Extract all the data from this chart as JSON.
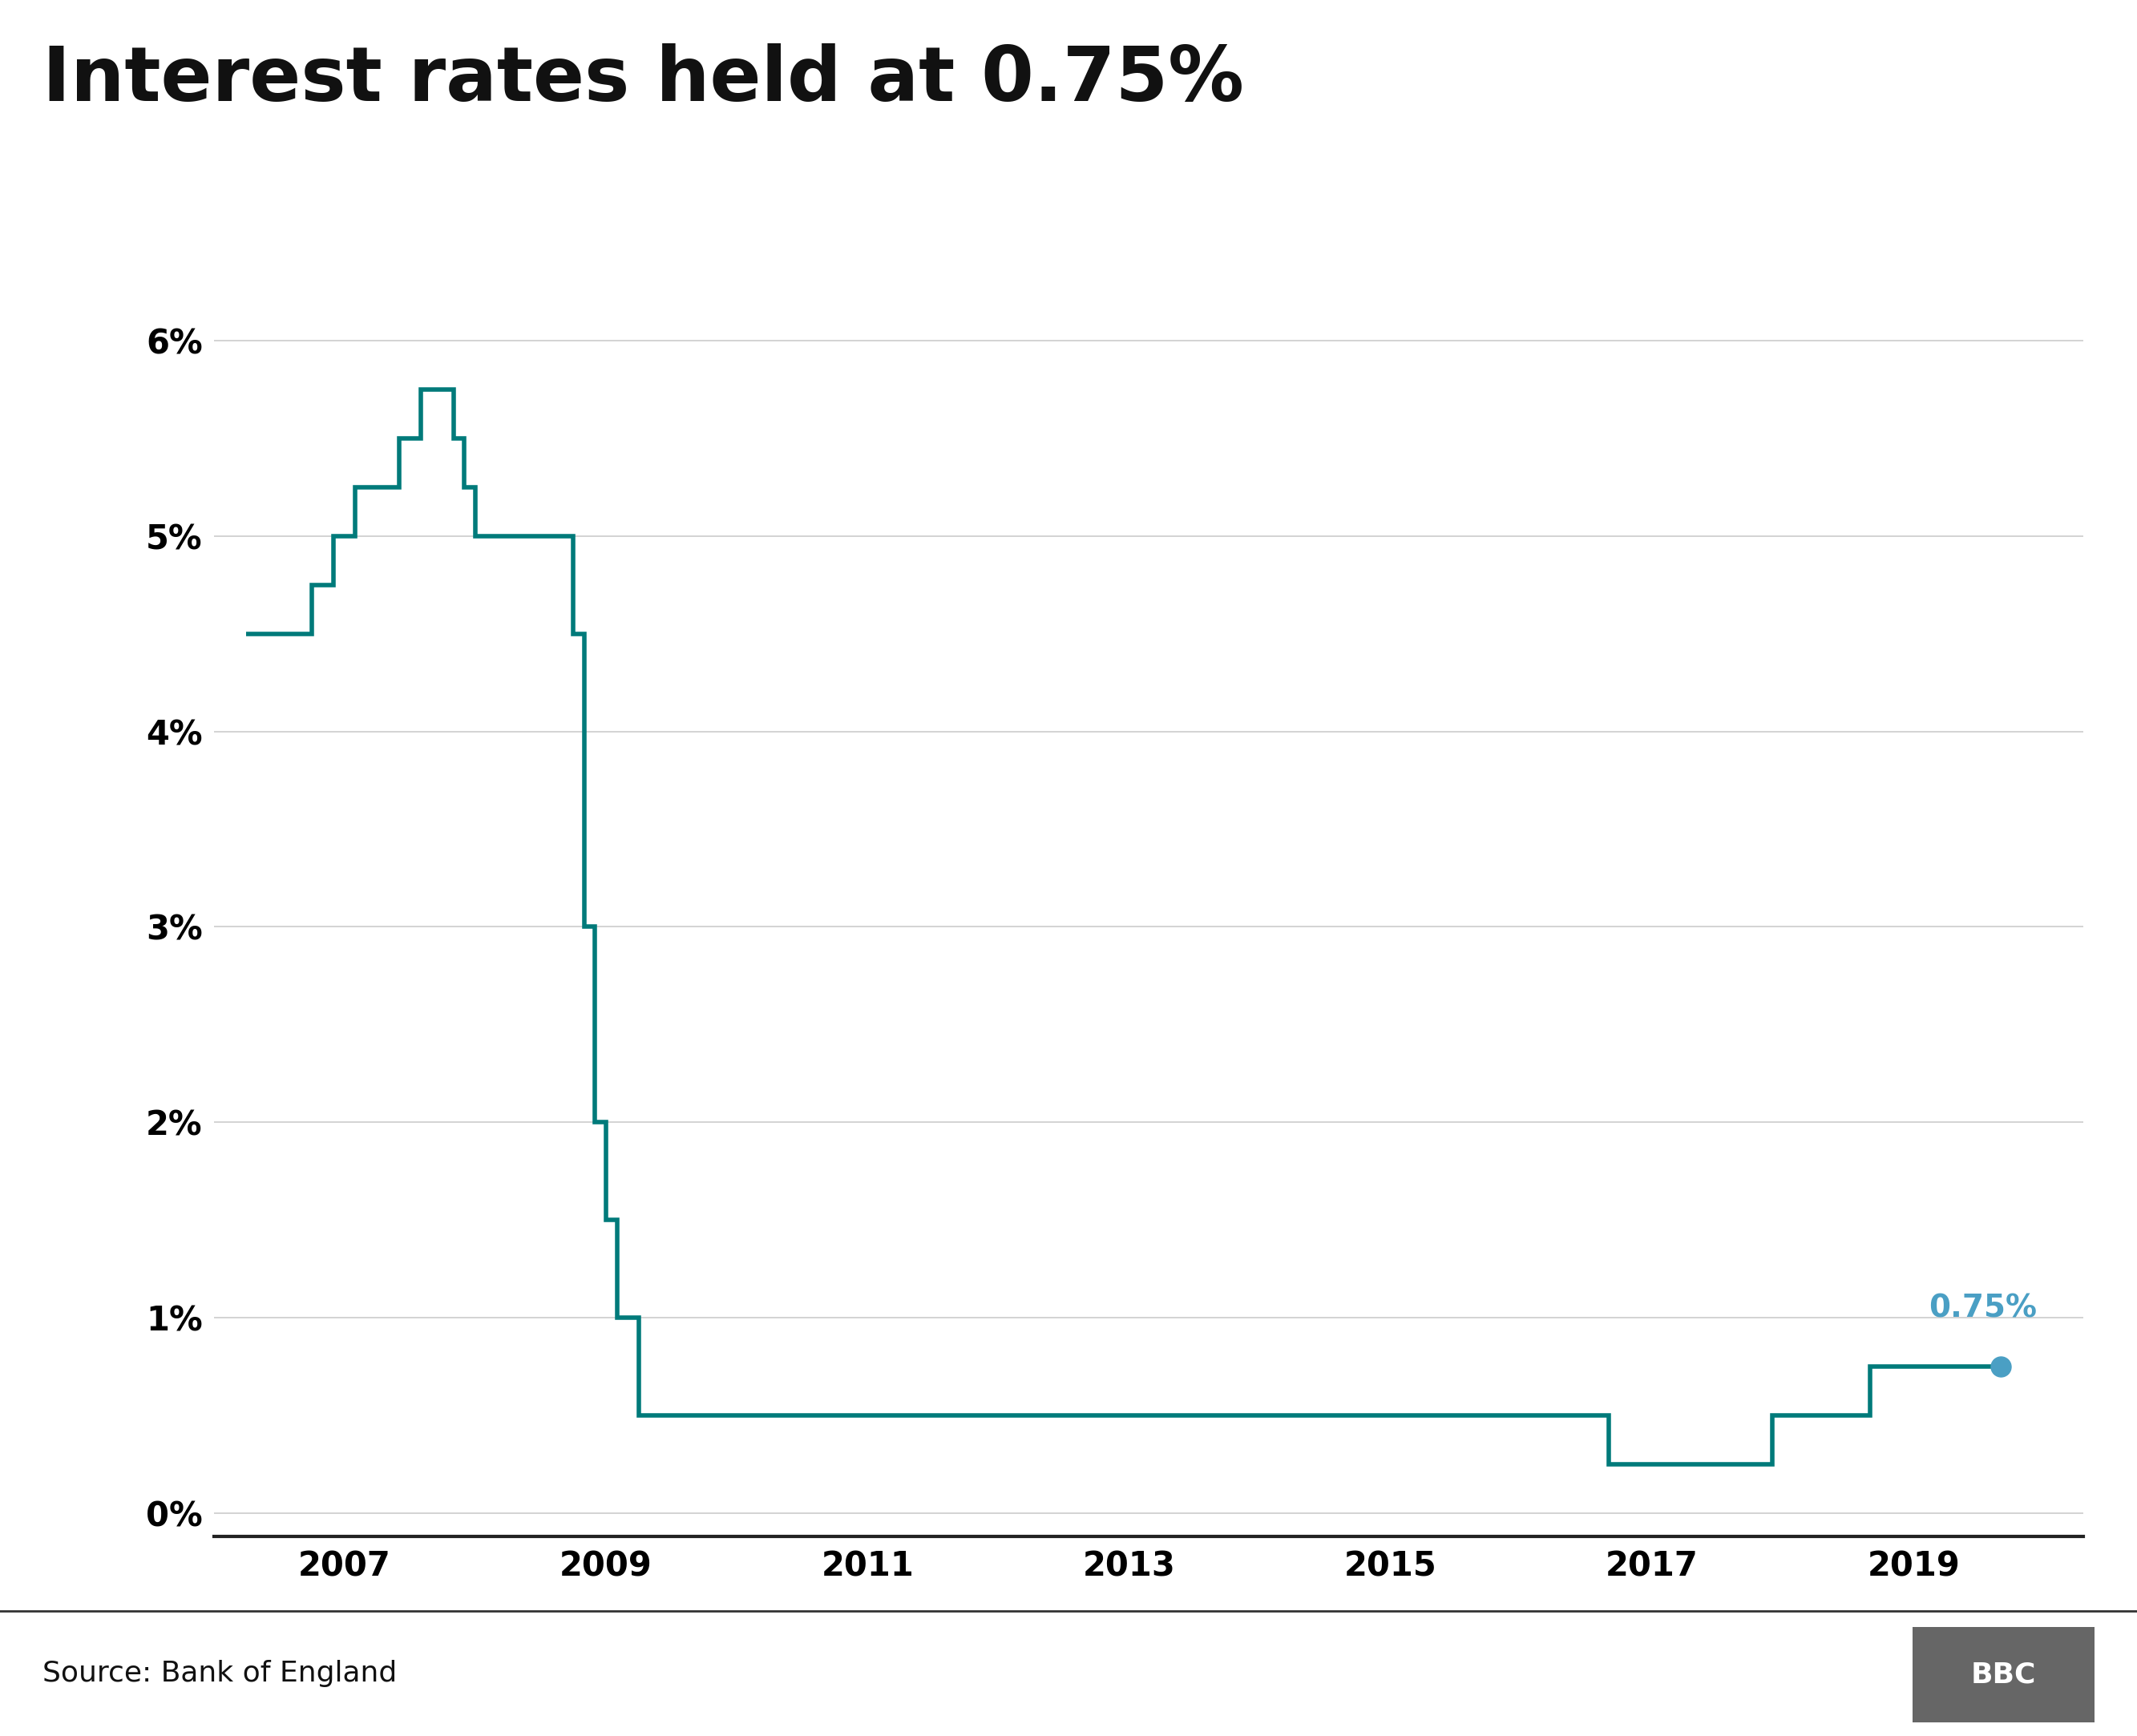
{
  "title": "Interest rates held at 0.75%",
  "line_color": "#007a7a",
  "annotation_color": "#4a9fc4",
  "bg_color": "#ffffff",
  "grid_color": "#cccccc",
  "source_text": "Source: Bank of England",
  "bbc_text": "BBC",
  "annotation_label": "0.75%",
  "annotation_fontsize": 28,
  "title_fontsize": 68,
  "tick_fontsize": 30,
  "source_fontsize": 26,
  "bbc_fontsize": 26,
  "yticks": [
    0,
    1,
    2,
    3,
    4,
    5,
    6
  ],
  "xticks": [
    2007,
    2009,
    2011,
    2013,
    2015,
    2017,
    2019
  ],
  "xlim": [
    2006.0,
    2020.3
  ],
  "ylim": [
    -0.12,
    6.5
  ],
  "rate_data": [
    [
      2006.25,
      4.5
    ],
    [
      2006.75,
      4.75
    ],
    [
      2006.917,
      5.0
    ],
    [
      2007.083,
      5.25
    ],
    [
      2007.417,
      5.5
    ],
    [
      2007.583,
      5.75
    ],
    [
      2007.833,
      5.5
    ],
    [
      2007.917,
      5.25
    ],
    [
      2008.0,
      5.0
    ],
    [
      2008.75,
      4.5
    ],
    [
      2008.833,
      3.0
    ],
    [
      2008.917,
      2.0
    ],
    [
      2009.0,
      1.5
    ],
    [
      2009.083,
      1.0
    ],
    [
      2009.25,
      0.5
    ],
    [
      2016.583,
      0.5
    ],
    [
      2016.667,
      0.25
    ],
    [
      2017.833,
      0.25
    ],
    [
      2017.917,
      0.5
    ],
    [
      2018.583,
      0.5
    ],
    [
      2018.667,
      0.75
    ],
    [
      2019.667,
      0.75
    ]
  ],
  "endpoint_x": 2019.667,
  "endpoint_y": 0.75,
  "line_width": 4.0,
  "bbc_bg_color": "#666666"
}
